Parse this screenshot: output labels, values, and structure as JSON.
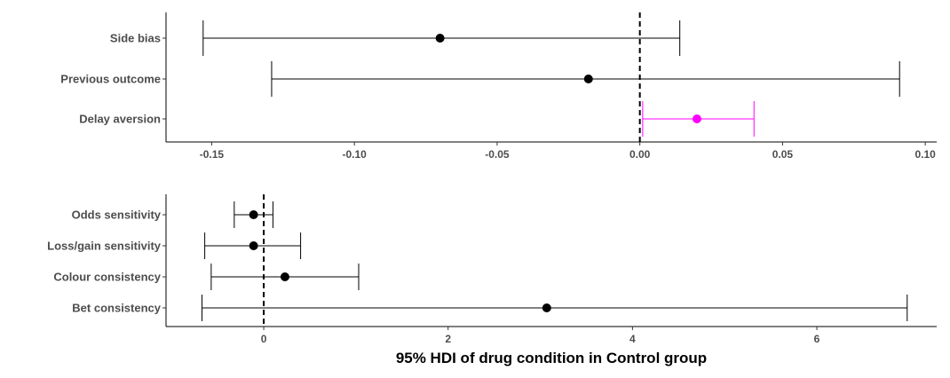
{
  "chart_data": [
    {
      "type": "forest",
      "categories": [
        "Side bias",
        "Previous outcome",
        "Delay aversion"
      ],
      "points": [
        -0.07,
        -0.018,
        0.02
      ],
      "lower": [
        -0.153,
        -0.129,
        0.001
      ],
      "upper": [
        0.014,
        0.091,
        0.04
      ],
      "colors": [
        "#000000",
        "#000000",
        "#FF00FF"
      ],
      "xlim": [
        -0.166,
        0.104
      ],
      "xticks": [
        -0.15,
        -0.1,
        -0.05,
        0.0,
        0.05,
        0.1
      ],
      "xtick_labels": [
        "-0.15",
        "-0.10",
        "-0.05",
        "0.00",
        "0.05",
        "0.10"
      ],
      "reference_line": 0,
      "xlabel": "",
      "grid": false
    },
    {
      "type": "forest",
      "categories": [
        "Odds sensitivity",
        "Loss/gain sensitivity",
        "Colour consistency",
        "Bet consistency"
      ],
      "points": [
        -0.11,
        -0.11,
        0.23,
        3.07
      ],
      "lower": [
        -0.32,
        -0.64,
        -0.57,
        -0.67
      ],
      "upper": [
        0.1,
        0.4,
        1.03,
        6.98
      ],
      "colors": [
        "#000000",
        "#000000",
        "#000000",
        "#000000"
      ],
      "xlim": [
        -1.06,
        7.3
      ],
      "xticks": [
        0,
        2,
        4,
        6
      ],
      "xtick_labels": [
        "0",
        "2",
        "4",
        "6"
      ],
      "reference_line": 0,
      "xlabel": "95% HDI of drug condition in Control group",
      "grid": false
    }
  ]
}
